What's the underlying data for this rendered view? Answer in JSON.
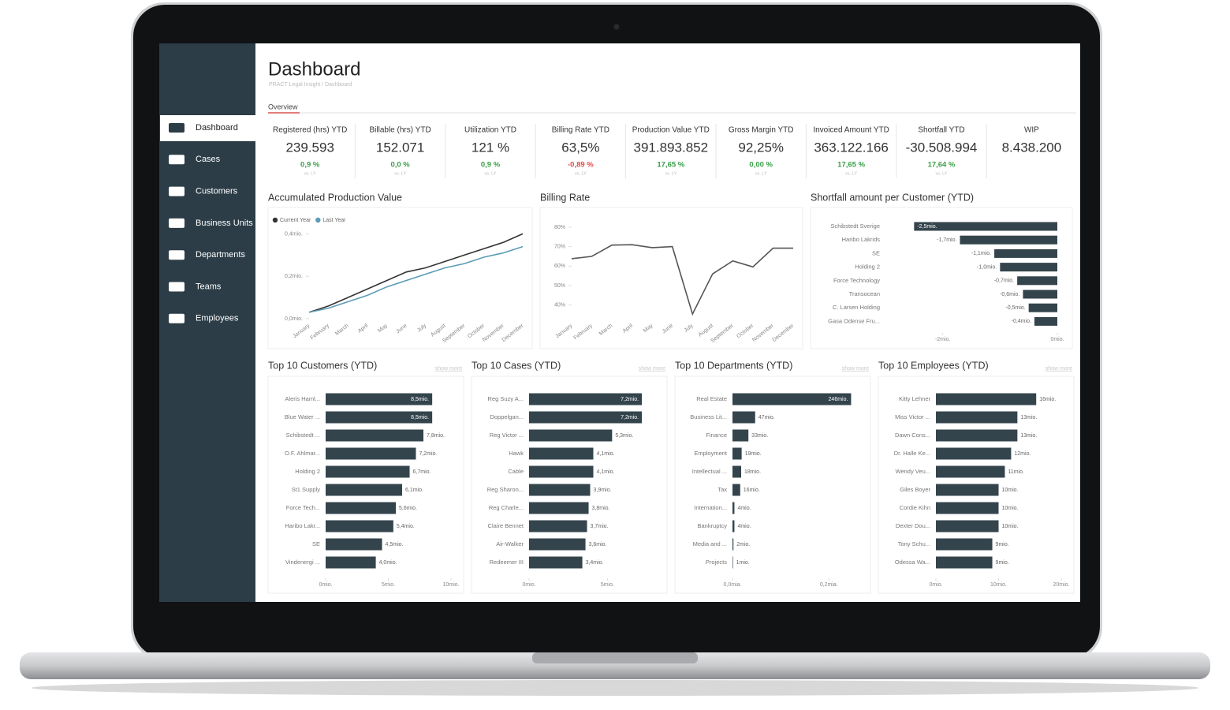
{
  "header": {
    "title": "Dashboard",
    "breadcrumb": "PRACT Legal Insight / Dashboard",
    "tab": "Overview"
  },
  "nav": {
    "items": [
      "Dashboard",
      "Cases",
      "Customers",
      "Business Units",
      "Departments",
      "Teams",
      "Employees"
    ]
  },
  "kpis": [
    {
      "label": "Registered (hrs) YTD",
      "value": "239.593",
      "change": "0,9 %",
      "color": "#3a9e48",
      "note": "vs. LY"
    },
    {
      "label": "Billable (hrs) YTD",
      "value": "152.071",
      "change": "0,0 %",
      "color": "#3a9e48",
      "note": "vs. LY"
    },
    {
      "label": "Utilization YTD",
      "value": "121 %",
      "change": "0,9 %",
      "color": "#3a9e48",
      "note": "vs. LY"
    },
    {
      "label": "Billing Rate YTD",
      "value": "63,5%",
      "change": "-0,89 %",
      "color": "#e04848",
      "note": "vs. LY"
    },
    {
      "label": "Production Value YTD",
      "value": "391.893.852",
      "change": "17,65 %",
      "color": "#3a9e48",
      "note": "vs. LY"
    },
    {
      "label": "Gross Margin YTD",
      "value": "92,25%",
      "change": "0,00 %",
      "color": "#3a9e48",
      "note": "vs. LY"
    },
    {
      "label": "Invoiced Amount YTD",
      "value": "363.122.166",
      "change": "17,65 %",
      "color": "#3a9e48",
      "note": "vs. LY"
    },
    {
      "label": "Shortfall YTD",
      "value": "-30.508.994",
      "change": "17,64 %",
      "color": "#3a9e48",
      "note": "vs. LY"
    },
    {
      "label": "WIP",
      "value": "8.438.200"
    }
  ],
  "chart_data": [
    {
      "type": "line",
      "title": "Accumulated Production Value",
      "categories": [
        "January",
        "February",
        "March",
        "April",
        "May",
        "June",
        "July",
        "August",
        "September",
        "October",
        "November",
        "December"
      ],
      "series": [
        {
          "name": "Current Year",
          "color": "#333333",
          "values": [
            0.03,
            0.06,
            0.1,
            0.14,
            0.18,
            0.22,
            0.24,
            0.27,
            0.3,
            0.33,
            0.36,
            0.4
          ]
        },
        {
          "name": "Last Year",
          "color": "#5b9bb5",
          "values": [
            0.03,
            0.05,
            0.08,
            0.11,
            0.15,
            0.18,
            0.21,
            0.24,
            0.26,
            0.29,
            0.31,
            0.34
          ]
        }
      ],
      "ylim": [
        0,
        0.45
      ],
      "yticks": [
        {
          "value": 0,
          "label": "0,0mio."
        },
        {
          "value": 0.2,
          "label": "0,2mio."
        },
        {
          "value": 0.4,
          "label": "0,4mio."
        }
      ],
      "legend": "top-left"
    },
    {
      "type": "line",
      "title": "Billing Rate",
      "categories": [
        "January",
        "February",
        "March",
        "April",
        "May",
        "June",
        "July",
        "August",
        "September",
        "October",
        "November",
        "December"
      ],
      "series": [
        {
          "color": "#555555",
          "values": [
            63.8,
            65,
            70.8,
            71,
            69.5,
            70,
            35.4,
            56,
            62.7,
            59.6,
            69.2,
            69.2
          ]
        }
      ],
      "ylim": [
        33,
        82
      ],
      "yticks": [
        {
          "value": 40,
          "label": "40%"
        },
        {
          "value": 50,
          "label": "50%"
        },
        {
          "value": 60,
          "label": "60%"
        },
        {
          "value": 70,
          "label": "70%"
        },
        {
          "value": 80,
          "label": "80%"
        }
      ]
    },
    {
      "type": "hbar",
      "title": "Shortfall amount per Customer (YTD)",
      "categories": [
        "Schibstedt Sverige",
        "Haribo Lakrids",
        "SE",
        "Holding 2",
        "Force Technology",
        "Transocean",
        "C. Larsen Holding",
        "Gasa Odense Fru..."
      ],
      "values": [
        -2.5,
        -1.7,
        -1.1,
        -1.0,
        -0.7,
        -0.6,
        -0.5,
        -0.4
      ],
      "value_labels": [
        "-2,5mio.",
        "-1,7mio.",
        "-1,1mio.",
        "-1,0mio.",
        "-0,7mio.",
        "-0,6mio.",
        "-0,5mio.",
        "-0,4mio."
      ],
      "color": "#34444c",
      "xlim": [
        -3,
        0
      ],
      "xticks": [
        {
          "value": -2,
          "label": "-2mio."
        },
        {
          "value": 0,
          "label": "0mio."
        }
      ]
    },
    {
      "type": "hbar",
      "title": "Top 10 Customers (YTD)",
      "link": "show more",
      "categories": [
        "Aleris Haml...",
        "Blue Water ...",
        "Schibstedt ...",
        "O.F. Ahlmar...",
        "Holding 2",
        "St1 Supply",
        "Force Tech...",
        "Haribo Lakr...",
        "SE",
        "Vindenergi ..."
      ],
      "values": [
        8.5,
        8.5,
        7.8,
        7.2,
        6.7,
        6.1,
        5.6,
        5.4,
        4.5,
        4.0
      ],
      "value_labels": [
        "8,5mio.",
        "8,5mio.",
        "7,8mio.",
        "7,2mio.",
        "6,7mio.",
        "6,1mio.",
        "5,6mio.",
        "5,4mio.",
        "4,5mio.",
        "4,0mio."
      ],
      "color": "#34444c",
      "xlim": [
        0,
        10
      ],
      "xticks": [
        {
          "value": 0,
          "label": "0mio."
        },
        {
          "value": 5,
          "label": "5mio."
        },
        {
          "value": 10,
          "label": "10mio."
        }
      ]
    },
    {
      "type": "hbar",
      "title": "Top 10 Cases (YTD)",
      "link": "show more",
      "categories": [
        "Reg Suzy A...",
        "Doppelgan...",
        "Reg Victor ...",
        "Hawk",
        "Cable",
        "Reg Sharon...",
        "Reg Charle...",
        "Claire Bennet",
        "Air-Walker",
        "Redeemer III"
      ],
      "values": [
        7.2,
        7.2,
        5.3,
        4.1,
        4.1,
        3.9,
        3.8,
        3.7,
        3.6,
        3.4
      ],
      "value_labels": [
        "7,2mio.",
        "7,2mio.",
        "5,3mio.",
        "4,1mio.",
        "4,1mio.",
        "3,9mio.",
        "3,8mio.",
        "3,7mio.",
        "3,6mio.",
        "3,4mio."
      ],
      "color": "#34444c",
      "xlim": [
        0,
        8
      ],
      "xticks": [
        {
          "value": 0,
          "label": "0mio."
        },
        {
          "value": 5,
          "label": "5mio."
        }
      ]
    },
    {
      "type": "hbar",
      "title": "Top 10 Departments (YTD)",
      "link": "show more",
      "categories": [
        "Real Estate",
        "Business Lit...",
        "Finance",
        "Employment",
        "Intellectual ...",
        "Tax",
        "Internation...",
        "Bankruptcy",
        "Media and ...",
        "Projects"
      ],
      "values": [
        246,
        47,
        33,
        19,
        18,
        16,
        4,
        4,
        2,
        1
      ],
      "value_labels": [
        "246mio.",
        "47mio.",
        "33mio.",
        "19mio.",
        "18mio.",
        "16mio.",
        "4mio.",
        "4mio.",
        "2mio.",
        "1mio."
      ],
      "color": "#34444c",
      "xlim": [
        0,
        260
      ],
      "xticks": [
        {
          "value": 0,
          "label": "0,0mia."
        },
        {
          "value": 200,
          "label": "0,2mia."
        }
      ]
    },
    {
      "type": "hbar",
      "title": "Top 10 Employees (YTD)",
      "link": "show more",
      "categories": [
        "Kitty Lehner",
        "Miss Victor ...",
        "Dawn Cons...",
        "Dr. Halle Ke...",
        "Wendy Veu...",
        "Giles Boyer",
        "Cordie Kihn",
        "Dexter Dou...",
        "Tony Schu...",
        "Odessa Wa..."
      ],
      "values": [
        16,
        13,
        13,
        12,
        11,
        10,
        10,
        10,
        9,
        9
      ],
      "value_labels": [
        "16mio.",
        "13mio.",
        "13mio.",
        "12mio.",
        "11mio.",
        "10mio.",
        "10mio.",
        "10mio.",
        "9mio.",
        "9mio."
      ],
      "color": "#34444c",
      "xlim": [
        0,
        20
      ],
      "xticks": [
        {
          "value": 0,
          "label": "0mio."
        },
        {
          "value": 10,
          "label": "10mio."
        },
        {
          "value": 20,
          "label": "20mio."
        }
      ]
    }
  ]
}
